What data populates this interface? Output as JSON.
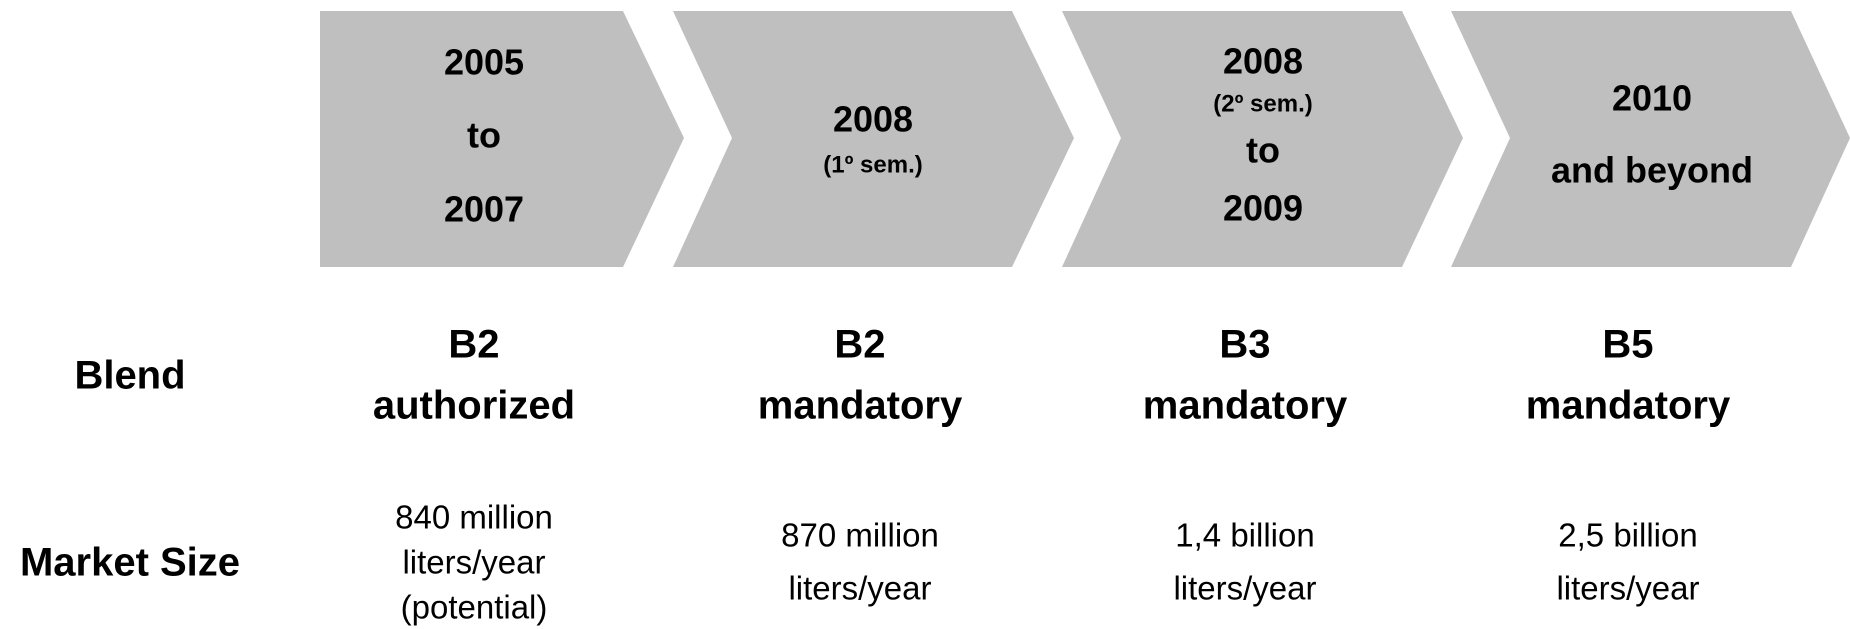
{
  "row_labels": [
    "Blend",
    "Market Size"
  ],
  "phases": [
    {
      "period": [
        "2005",
        "to",
        "2007"
      ],
      "blend": [
        "B2",
        "authorized"
      ],
      "market": [
        "840 million",
        "liters/year",
        "(potential)"
      ]
    },
    {
      "period": [
        "2008",
        "(1º sem.)"
      ],
      "blend": [
        "B2",
        "mandatory"
      ],
      "market": [
        "870 million",
        "liters/year"
      ]
    },
    {
      "period": [
        "2008",
        "(2º sem.)",
        "to",
        "2009"
      ],
      "blend": [
        "B3",
        "mandatory"
      ],
      "market": [
        "1,4 billion",
        "liters/year"
      ]
    },
    {
      "period": [
        "2010",
        "and beyond"
      ],
      "blend": [
        "B5",
        "mandatory"
      ],
      "market": [
        "2,5 billion",
        "liters/year"
      ]
    }
  ]
}
